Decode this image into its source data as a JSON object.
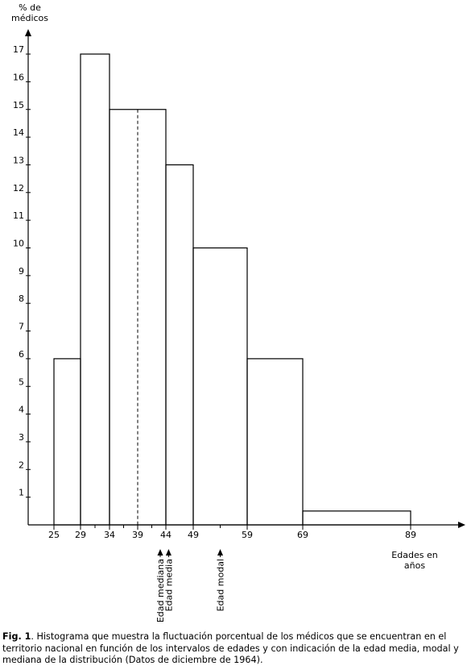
{
  "chart_data": {
    "type": "bar",
    "ylabel": "% de médicos",
    "xlabel": "Edades en años",
    "x_edges": [
      25,
      29,
      34,
      39,
      44,
      49,
      59,
      69,
      89
    ],
    "x_tick_labels": [
      "25",
      "29",
      "34",
      "39",
      "44",
      "49",
      "59",
      "69",
      "89"
    ],
    "bins": [
      {
        "from": 25,
        "to": 29,
        "value": 6
      },
      {
        "from": 29,
        "to": 34,
        "value": 17
      },
      {
        "from": 34,
        "to": 44,
        "value": 15
      },
      {
        "from": 44,
        "to": 49,
        "value": 13
      },
      {
        "from": 49,
        "to": 59,
        "value": 10
      },
      {
        "from": 59,
        "to": 69,
        "value": 6
      },
      {
        "from": 69,
        "to": 89,
        "value": 0.5
      }
    ],
    "xlim": [
      20,
      95
    ],
    "ylim": [
      0,
      18
    ],
    "y_ticks": [
      1,
      2,
      3,
      4,
      5,
      6,
      7,
      8,
      9,
      10,
      11,
      12,
      13,
      14,
      15,
      16,
      17
    ],
    "dashed_lines": [
      {
        "x": 34,
        "value": 15
      },
      {
        "x": 39,
        "value": 15
      },
      {
        "x": 44,
        "value": 13
      },
      {
        "x": 49,
        "value": 10
      },
      {
        "x": 59,
        "value": 6
      }
    ],
    "annotations": [
      {
        "x": 43,
        "label": "Edad mediana"
      },
      {
        "x": 44.5,
        "label": "Edad media"
      },
      {
        "x": 54,
        "label": "Edad modal"
      }
    ],
    "grid": false
  },
  "caption": {
    "label": "Fig. 1",
    "text": ". Histograma que muestra la fluctuación porcentual de los médicos que se encuentran en el territorio nacional en función de los intervalos de edades y con indicación de la edad media, modal y mediana de la distribución (Datos de diciembre de 1964)."
  }
}
